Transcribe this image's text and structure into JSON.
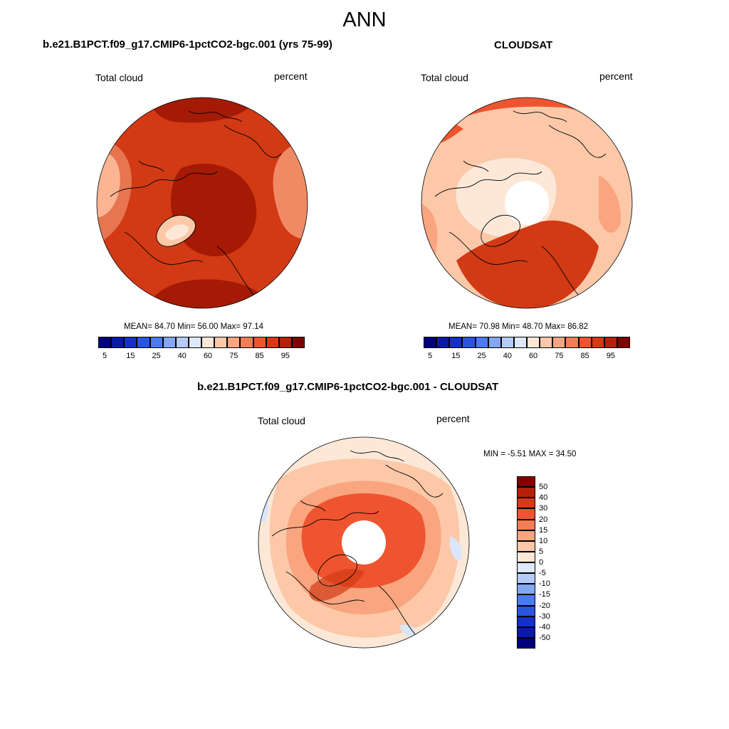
{
  "title": "ANN",
  "panels": [
    {
      "title": "b.e21.B1PCT.f09_g17.CMIP6-1pctCO2-bgc.001 (yrs 75-99)",
      "left_label": "Total cloud",
      "right_label": "percent",
      "stats": {
        "mean": "84.70",
        "min": "56.00",
        "max": "97.14"
      },
      "stats_labels": {
        "mean": "MEAN=",
        "min": "Min=",
        "max": "Max="
      },
      "base_color": "#cc3311"
    },
    {
      "title": "CLOUDSAT",
      "left_label": "Total cloud",
      "right_label": "percent",
      "stats": {
        "mean": "70.98",
        "min": "48.70",
        "max": "86.82"
      },
      "stats_labels": {
        "mean": "MEAN=",
        "min": "Min=",
        "max": "Max="
      },
      "base_color": "#fdc4a3"
    }
  ],
  "difference": {
    "title": "b.e21.B1PCT.f09_g17.CMIP6-1pctCO2-bgc.001 - CLOUDSAT",
    "left_label": "Total cloud",
    "right_label": "percent",
    "minmax_text": "MIN =  -5.51 MAX =  34.50",
    "base_color": "#fcd5bd"
  },
  "abs_colorbar": {
    "colors": [
      "#000080",
      "#0a1aa6",
      "#1530c8",
      "#2a55e0",
      "#4c7bf0",
      "#83a6f5",
      "#b5cbf8",
      "#dde8fb",
      "#fde8d8",
      "#fcc8a8",
      "#f9a57f",
      "#f57d55",
      "#ef5430",
      "#d93715",
      "#b52008",
      "#800000"
    ],
    "tick_labels": [
      "5",
      "15",
      "25",
      "40",
      "60",
      "75",
      "85",
      "95"
    ]
  },
  "diff_colorbar": {
    "colors": [
      "#800000",
      "#b52008",
      "#d93715",
      "#ef5430",
      "#f57d55",
      "#f9a57f",
      "#fcc8a8",
      "#fde8d8",
      "#dde8fb",
      "#b5cbf8",
      "#83a6f5",
      "#4c7bf0",
      "#2a55e0",
      "#1530c8",
      "#0a1aa6",
      "#000080"
    ],
    "tick_labels": [
      "50",
      "40",
      "30",
      "20",
      "15",
      "10",
      "5",
      "0",
      "-5",
      "-10",
      "-15",
      "-20",
      "-30",
      "-40",
      "-50"
    ]
  },
  "map_colors": {
    "deep_red": "#a51a05",
    "red": "#d13a14",
    "orange": "#ef5430",
    "light_orange": "#f9a57f",
    "peach": "#fcc8a8",
    "cream": "#fde8d8",
    "light_blue": "#d9e6fb",
    "coast": "#000000"
  }
}
